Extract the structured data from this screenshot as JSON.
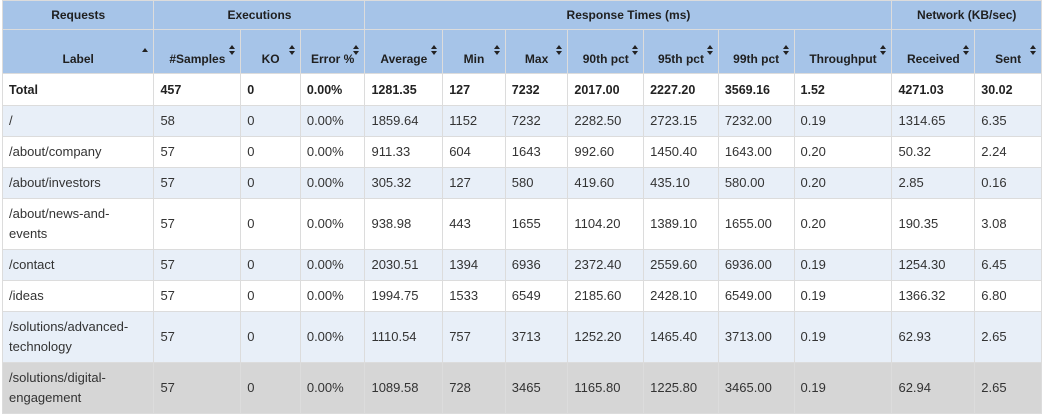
{
  "groups": {
    "requests": "Requests",
    "executions": "Executions",
    "response_times": "Response Times (ms)",
    "network": "Network (KB/sec)"
  },
  "columns": [
    "Label",
    "#Samples",
    "KO",
    "Error %",
    "Average",
    "Min",
    "Max",
    "90th pct",
    "95th pct",
    "99th pct",
    "Throughput",
    "Received",
    "Sent"
  ],
  "sort": {
    "column": "Label",
    "direction": "ascending"
  },
  "colors": {
    "header_bg": "#a6c4e8",
    "row_alt_bg": "#e8eff8",
    "row_hover_bg": "#d6d6d6"
  },
  "total": [
    "Total",
    "457",
    "0",
    "0.00%",
    "1281.35",
    "127",
    "7232",
    "2017.00",
    "2227.20",
    "3569.16",
    "1.52",
    "4271.03",
    "30.02"
  ],
  "rows": [
    [
      "/",
      "58",
      "0",
      "0.00%",
      "1859.64",
      "1152",
      "7232",
      "2282.50",
      "2723.15",
      "7232.00",
      "0.19",
      "1314.65",
      "6.35"
    ],
    [
      "/about/company",
      "57",
      "0",
      "0.00%",
      "911.33",
      "604",
      "1643",
      "992.60",
      "1450.40",
      "1643.00",
      "0.20",
      "50.32",
      "2.24"
    ],
    [
      "/about/investors",
      "57",
      "0",
      "0.00%",
      "305.32",
      "127",
      "580",
      "419.60",
      "435.10",
      "580.00",
      "0.20",
      "2.85",
      "0.16"
    ],
    [
      "/about/news-and-events",
      "57",
      "0",
      "0.00%",
      "938.98",
      "443",
      "1655",
      "1104.20",
      "1389.10",
      "1655.00",
      "0.20",
      "190.35",
      "3.08"
    ],
    [
      "/contact",
      "57",
      "0",
      "0.00%",
      "2030.51",
      "1394",
      "6936",
      "2372.40",
      "2559.60",
      "6936.00",
      "0.19",
      "1254.30",
      "6.45"
    ],
    [
      "/ideas",
      "57",
      "0",
      "0.00%",
      "1994.75",
      "1533",
      "6549",
      "2185.60",
      "2428.10",
      "6549.00",
      "0.19",
      "1366.32",
      "6.80"
    ],
    [
      "/solutions/advanced-technology",
      "57",
      "0",
      "0.00%",
      "1110.54",
      "757",
      "3713",
      "1252.20",
      "1465.40",
      "3713.00",
      "0.19",
      "62.93",
      "2.65"
    ],
    [
      "/solutions/digital-engagement",
      "57",
      "0",
      "0.00%",
      "1089.58",
      "728",
      "3465",
      "1165.80",
      "1225.80",
      "3465.00",
      "0.19",
      "62.94",
      "2.65"
    ]
  ]
}
